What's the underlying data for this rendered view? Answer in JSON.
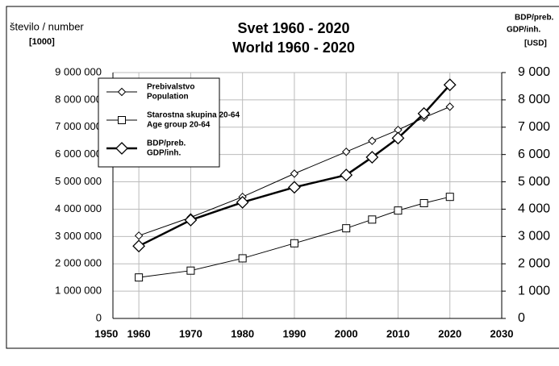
{
  "chart_data": {
    "type": "line",
    "title": [
      "Svet 1960 - 2020",
      "World 1960 - 2020"
    ],
    "y_axis_label": [
      "število / number",
      "[1000]"
    ],
    "y2_axis_label": [
      "BDP/preb.",
      "GDP/inh.",
      "[USD]"
    ],
    "x": [
      1960,
      1970,
      1980,
      1990,
      2000,
      2005,
      2010,
      2015,
      2020
    ],
    "xlim": [
      1955,
      2030
    ],
    "xticks": [
      1950,
      1960,
      1970,
      1980,
      1990,
      2000,
      2010,
      2020,
      2030
    ],
    "ylim": [
      0,
      9000000
    ],
    "yticks": [
      {
        "value": 0,
        "label": "0"
      },
      {
        "value": 1000000,
        "label": "1 000 000"
      },
      {
        "value": 2000000,
        "label": "2 000 000"
      },
      {
        "value": 3000000,
        "label": "3 000 000"
      },
      {
        "value": 4000000,
        "label": "4 000 000"
      },
      {
        "value": 5000000,
        "label": "5 000 000"
      },
      {
        "value": 6000000,
        "label": "6 000 000"
      },
      {
        "value": 7000000,
        "label": "7 000 000"
      },
      {
        "value": 8000000,
        "label": "8 000 000"
      },
      {
        "value": 9000000,
        "label": "9 000 000"
      }
    ],
    "y2lim": [
      0,
      9000
    ],
    "y2ticks": [
      0,
      {
        "value": 1000,
        "label": "1 000"
      },
      {
        "value": 2000,
        "label": "2 000"
      },
      {
        "value": 3000,
        "label": "3 000"
      },
      {
        "value": 4000,
        "label": "4 000"
      },
      {
        "value": 5000,
        "label": "5 000"
      },
      {
        "value": 6000,
        "label": "6 000"
      },
      {
        "value": 7000,
        "label": "7 000"
      },
      {
        "value": 8000,
        "label": "8 000"
      },
      {
        "value": 9000,
        "label": "9 000"
      }
    ],
    "grid": true,
    "legend": "upper left",
    "series": [
      {
        "name": [
          "Prebivalstvo",
          "Population"
        ],
        "color": "#000000",
        "marker": "diamond",
        "values": [
          3030000,
          3700000,
          4450000,
          5300000,
          6100000,
          6500000,
          6900000,
          7350000,
          7750000
        ]
      },
      {
        "name": [
          "Starostna skupina 20-64",
          "Age group 20-64"
        ],
        "color": "#000000",
        "marker": "square",
        "values": [
          1500000,
          1750000,
          2200000,
          2750000,
          3300000,
          3620000,
          3950000,
          4220000,
          4450000
        ]
      },
      {
        "name": [
          "BDP/preb.",
          "GDP/inh."
        ],
        "color": "#000000",
        "marker": "bigdiamond",
        "axis": "y2",
        "values": [
          2650,
          3600,
          4250,
          4800,
          5250,
          5900,
          6600,
          7500,
          8550
        ]
      }
    ]
  }
}
